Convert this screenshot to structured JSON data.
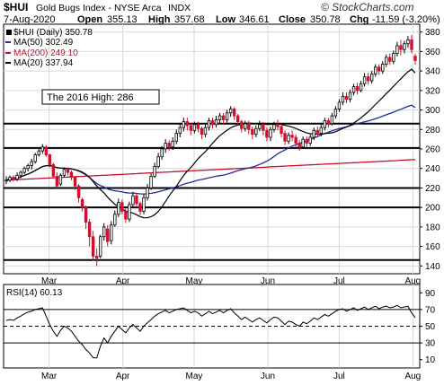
{
  "chart_data": {
    "type": "candlestick",
    "symbol": "$HUI",
    "title": "Gold Bugs Index - NYSE Arca",
    "exchange": "INDX",
    "watermark": "© StockCharts.com",
    "date": "7-Aug-2020",
    "ohlc_summary": {
      "open_label": "Open",
      "open": "355.13",
      "high_label": "High",
      "high": "357.68",
      "low_label": "Low",
      "low": "346.61",
      "close_label": "Close",
      "close": "350.78",
      "chg_label": "Chg",
      "chg": "-11.59 (-3.20%)"
    },
    "legend": [
      {
        "label": "$HUI (Daily) 350.78",
        "color": "#000000",
        "marker": "square-black"
      },
      {
        "label": "MA(50) 302.49",
        "color": "#1f2f9a"
      },
      {
        "label": "MA(200) 249.10",
        "color": "#c8102e"
      },
      {
        "label": "MA(20) 337.94",
        "color": "#000000"
      }
    ],
    "annotation": "The 2016 High: 286",
    "x_tick_labels": [
      "Mar",
      "Apr",
      "May",
      "Jun",
      "Jul",
      "Aug"
    ],
    "x_tick_days": [
      36,
      67,
      97,
      128,
      158,
      189
    ],
    "ylim": [
      132,
      388
    ],
    "y_ticks": [
      140,
      160,
      180,
      200,
      220,
      240,
      260,
      280,
      300,
      320,
      340,
      360,
      380
    ],
    "horizontal_levels": [
      146,
      200,
      220,
      261,
      286
    ],
    "candles": [
      [
        228,
        228,
        224,
        232
      ],
      [
        228,
        231,
        226,
        233
      ],
      [
        231,
        229,
        227,
        233
      ],
      [
        229,
        233,
        227,
        236
      ],
      [
        233,
        236,
        230,
        238
      ],
      [
        236,
        240,
        234,
        242
      ],
      [
        240,
        243,
        237,
        245
      ],
      [
        243,
        247,
        239,
        250
      ],
      [
        247,
        254,
        245,
        256
      ],
      [
        254,
        258,
        252,
        260
      ],
      [
        258,
        262,
        255,
        265
      ],
      [
        262,
        254,
        252,
        264
      ],
      [
        254,
        244,
        241,
        255
      ],
      [
        244,
        232,
        230,
        246
      ],
      [
        232,
        222,
        220,
        236
      ],
      [
        224,
        233,
        222,
        235
      ],
      [
        233,
        239,
        231,
        241
      ],
      [
        239,
        236,
        233,
        241
      ],
      [
        236,
        231,
        228,
        238
      ],
      [
        231,
        222,
        218,
        232
      ],
      [
        222,
        210,
        205,
        224
      ],
      [
        208,
        200,
        196,
        210
      ],
      [
        200,
        185,
        178,
        202
      ],
      [
        185,
        170,
        160,
        188
      ],
      [
        170,
        150,
        145,
        176
      ],
      [
        150,
        148,
        140,
        158
      ],
      [
        150,
        170,
        148,
        172
      ],
      [
        170,
        180,
        166,
        184
      ],
      [
        178,
        165,
        160,
        182
      ],
      [
        166,
        182,
        162,
        186
      ],
      [
        182,
        193,
        180,
        197
      ],
      [
        193,
        205,
        190,
        209
      ],
      [
        205,
        196,
        193,
        208
      ],
      [
        196,
        188,
        184,
        199
      ],
      [
        188,
        203,
        185,
        206
      ],
      [
        203,
        212,
        200,
        216
      ],
      [
        212,
        204,
        200,
        215
      ],
      [
        204,
        196,
        192,
        206
      ],
      [
        196,
        210,
        193,
        214
      ],
      [
        210,
        220,
        207,
        224
      ],
      [
        220,
        232,
        218,
        235
      ],
      [
        232,
        242,
        230,
        246
      ],
      [
        242,
        252,
        240,
        256
      ],
      [
        252,
        260,
        249,
        263
      ],
      [
        260,
        266,
        256,
        270
      ],
      [
        266,
        262,
        258,
        269
      ],
      [
        262,
        268,
        259,
        272
      ],
      [
        268,
        276,
        265,
        280
      ],
      [
        276,
        282,
        272,
        286
      ],
      [
        282,
        288,
        278,
        292
      ],
      [
        288,
        284,
        279,
        292
      ],
      [
        284,
        279,
        274,
        287
      ],
      [
        279,
        285,
        276,
        288
      ],
      [
        285,
        281,
        277,
        288
      ],
      [
        281,
        275,
        270,
        283
      ],
      [
        275,
        282,
        272,
        285
      ],
      [
        282,
        289,
        279,
        292
      ],
      [
        289,
        285,
        281,
        292
      ],
      [
        285,
        290,
        282,
        294
      ],
      [
        290,
        294,
        286,
        297
      ],
      [
        294,
        290,
        285,
        297
      ],
      [
        290,
        297,
        287,
        300
      ],
      [
        297,
        301,
        293,
        304
      ],
      [
        301,
        294,
        290,
        303
      ],
      [
        294,
        288,
        284,
        296
      ],
      [
        288,
        281,
        277,
        290
      ],
      [
        281,
        286,
        278,
        289
      ],
      [
        286,
        280,
        275,
        289
      ],
      [
        280,
        275,
        270,
        283
      ],
      [
        275,
        281,
        272,
        284
      ],
      [
        281,
        285,
        278,
        289
      ],
      [
        285,
        279,
        274,
        288
      ],
      [
        279,
        272,
        268,
        282
      ],
      [
        272,
        280,
        268,
        283
      ],
      [
        280,
        285,
        277,
        288
      ],
      [
        285,
        283,
        279,
        290
      ],
      [
        283,
        276,
        272,
        286
      ],
      [
        276,
        268,
        264,
        279
      ],
      [
        268,
        274,
        265,
        277
      ],
      [
        274,
        272,
        268,
        279
      ],
      [
        272,
        266,
        262,
        275
      ],
      [
        266,
        262,
        258,
        269
      ],
      [
        262,
        270,
        260,
        273
      ],
      [
        270,
        266,
        262,
        273
      ],
      [
        266,
        272,
        263,
        275
      ],
      [
        272,
        279,
        269,
        282
      ],
      [
        279,
        276,
        272,
        283
      ],
      [
        276,
        282,
        273,
        285
      ],
      [
        282,
        289,
        279,
        292
      ],
      [
        289,
        286,
        282,
        292
      ],
      [
        286,
        294,
        284,
        297
      ],
      [
        294,
        301,
        291,
        304
      ],
      [
        301,
        308,
        298,
        311
      ],
      [
        308,
        314,
        305,
        318
      ],
      [
        314,
        311,
        307,
        318
      ],
      [
        311,
        318,
        308,
        321
      ],
      [
        318,
        324,
        315,
        327
      ],
      [
        324,
        320,
        316,
        328
      ],
      [
        320,
        327,
        318,
        330
      ],
      [
        327,
        334,
        324,
        338
      ],
      [
        334,
        330,
        326,
        338
      ],
      [
        330,
        337,
        327,
        340
      ],
      [
        337,
        344,
        334,
        347
      ],
      [
        344,
        340,
        336,
        347
      ],
      [
        340,
        347,
        337,
        350
      ],
      [
        347,
        354,
        344,
        357
      ],
      [
        354,
        350,
        346,
        358
      ],
      [
        350,
        358,
        347,
        361
      ],
      [
        358,
        366,
        355,
        370
      ],
      [
        366,
        362,
        356,
        372
      ],
      [
        362,
        368,
        358,
        371
      ],
      [
        368,
        372,
        364,
        376
      ],
      [
        372,
        362,
        358,
        377
      ],
      [
        355.13,
        350.78,
        346.61,
        357.68
      ]
    ],
    "rsi": {
      "label": "RSI(14) 60.13",
      "ylim": [
        0,
        100
      ],
      "y_ticks": [
        10,
        30,
        50,
        70,
        90
      ],
      "values": [
        57,
        58,
        57,
        60,
        62,
        65,
        67,
        68,
        70,
        71,
        72,
        62,
        52,
        44,
        38,
        45,
        50,
        48,
        44,
        38,
        32,
        28,
        22,
        18,
        12,
        12,
        26,
        36,
        30,
        38,
        44,
        50,
        46,
        42,
        48,
        52,
        48,
        44,
        50,
        54,
        58,
        62,
        65,
        67,
        69,
        66,
        68,
        70,
        71,
        72,
        69,
        66,
        68,
        66,
        62,
        65,
        68,
        65,
        67,
        69,
        66,
        69,
        71,
        66,
        62,
        58,
        61,
        58,
        55,
        58,
        60,
        57,
        54,
        58,
        61,
        60,
        56,
        52,
        56,
        55,
        52,
        50,
        55,
        53,
        56,
        60,
        58,
        61,
        64,
        62,
        65,
        68,
        70,
        71,
        68,
        70,
        72,
        69,
        71,
        73,
        70,
        72,
        74,
        71,
        73,
        74,
        72,
        73,
        75,
        72,
        73,
        74,
        66,
        60.13
      ]
    }
  }
}
